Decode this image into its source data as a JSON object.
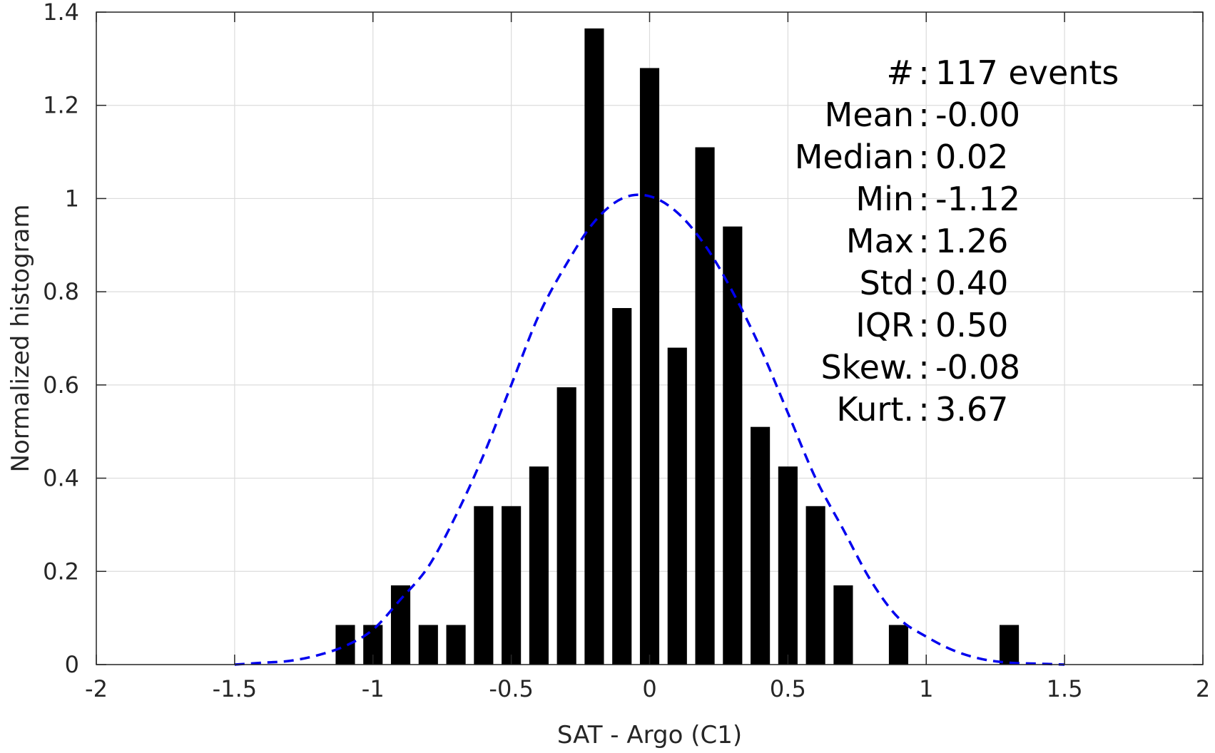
{
  "chart_data": {
    "type": "bar",
    "title": "",
    "xlabel": "SAT - Argo (C1)",
    "ylabel": "Normalized histogram",
    "xlim": [
      -2,
      2
    ],
    "ylim": [
      0,
      1.4
    ],
    "xticks": [
      -2,
      -1.5,
      -1,
      -0.5,
      0,
      0.5,
      1,
      1.5,
      2
    ],
    "xtick_labels": [
      "-2",
      "-1.5",
      "-1",
      "-0.5",
      "0",
      "0.5",
      "1",
      "1.5",
      "2"
    ],
    "yticks": [
      0,
      0.2,
      0.4,
      0.6,
      0.8,
      1,
      1.2,
      1.4
    ],
    "ytick_labels": [
      "0",
      "0.2",
      "0.4",
      "0.6",
      "0.8",
      "1",
      "1.2",
      "1.4"
    ],
    "grid": true,
    "bar_color": "#000000",
    "bin_width": 0.1,
    "bins": {
      "centers": [
        -1.1,
        -1.0,
        -0.9,
        -0.8,
        -0.7,
        -0.6,
        -0.5,
        -0.4,
        -0.3,
        -0.2,
        -0.1,
        0.0,
        0.1,
        0.2,
        0.3,
        0.4,
        0.5,
        0.6,
        0.7,
        0.9,
        1.3
      ],
      "values": [
        0.085,
        0.085,
        0.17,
        0.085,
        0.085,
        0.34,
        0.34,
        0.425,
        0.595,
        1.365,
        0.765,
        1.28,
        0.68,
        1.11,
        0.94,
        0.51,
        0.425,
        0.34,
        0.17,
        0.085,
        0.085
      ]
    },
    "fit_curve": {
      "style": "dashed",
      "color": "#0000ee",
      "x": [
        -1.5,
        -1.4,
        -1.3,
        -1.2,
        -1.1,
        -1.0,
        -0.9,
        -0.8,
        -0.7,
        -0.6,
        -0.5,
        -0.4,
        -0.3,
        -0.2,
        -0.1,
        0.0,
        0.1,
        0.2,
        0.3,
        0.4,
        0.5,
        0.6,
        0.7,
        0.8,
        0.9,
        1.0,
        1.1,
        1.2,
        1.3,
        1.4,
        1.5
      ],
      "y": [
        0.0,
        0.004,
        0.008,
        0.02,
        0.04,
        0.075,
        0.14,
        0.21,
        0.32,
        0.45,
        0.6,
        0.75,
        0.86,
        0.95,
        1.0,
        1.005,
        0.97,
        0.9,
        0.8,
        0.68,
        0.54,
        0.4,
        0.29,
        0.18,
        0.1,
        0.06,
        0.03,
        0.012,
        0.004,
        0.002,
        0.0
      ]
    },
    "stats": [
      {
        "label": "#  ",
        "sep": ":",
        "value": "117 events"
      },
      {
        "label": "Mean",
        "sep": ":",
        "value": "-0.00"
      },
      {
        "label": "Median",
        "sep": ":",
        "value": "0.02"
      },
      {
        "label": "Min",
        "sep": ":",
        "value": "-1.12"
      },
      {
        "label": "Max",
        "sep": ":",
        "value": "1.26"
      },
      {
        "label": "Std",
        "sep": ":",
        "value": "0.40"
      },
      {
        "label": "IQR",
        "sep": ":",
        "value": "0.50"
      },
      {
        "label": "Skew.",
        "sep": ":",
        "value": "-0.08"
      },
      {
        "label": "Kurt.",
        "sep": ":",
        "value": "3.67"
      }
    ]
  }
}
